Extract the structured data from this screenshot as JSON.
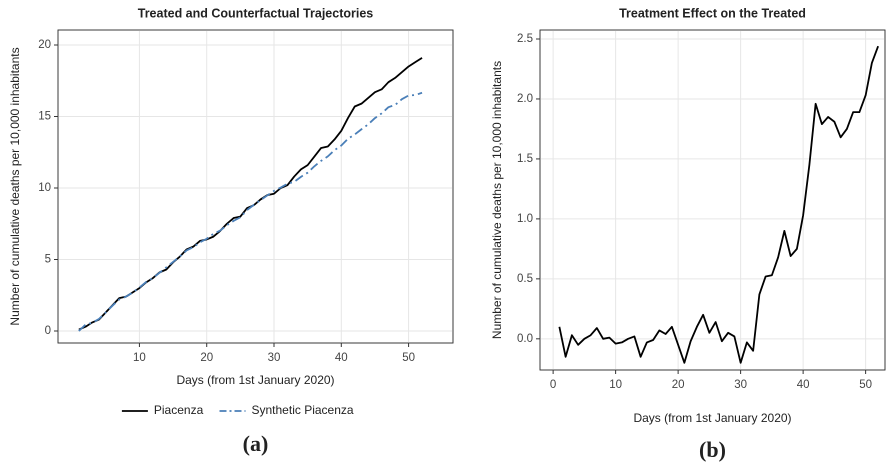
{
  "chart_data": [
    {
      "type": "line",
      "title": "Treated and Counterfactual Trajectories",
      "x_label": "Days (from 1st January 2020)",
      "y_label": "Number of cumulative deaths per 10,000 inhabitants",
      "caption": "(a)",
      "x": [
        1,
        2,
        3,
        4,
        5,
        6,
        7,
        8,
        9,
        10,
        11,
        12,
        13,
        14,
        15,
        16,
        17,
        18,
        19,
        20,
        21,
        22,
        23,
        24,
        25,
        26,
        27,
        28,
        29,
        30,
        31,
        32,
        33,
        34,
        35,
        36,
        37,
        38,
        39,
        40,
        41,
        42,
        43,
        44,
        45,
        46,
        47,
        48,
        49,
        50,
        51,
        52
      ],
      "series": [
        {
          "name": "Piacenza",
          "color": "#000000",
          "linestyle": "solid",
          "values": [
            0.1,
            0.3,
            0.6,
            0.8,
            1.3,
            1.8,
            2.3,
            2.4,
            2.7,
            3.0,
            3.4,
            3.7,
            4.1,
            4.3,
            4.8,
            5.2,
            5.7,
            5.9,
            6.3,
            6.4,
            6.6,
            7.0,
            7.5,
            7.9,
            8.0,
            8.6,
            8.8,
            9.2,
            9.5,
            9.6,
            10.0,
            10.2,
            10.8,
            11.3,
            11.6,
            12.2,
            12.8,
            12.9,
            13.4,
            14.0,
            14.9,
            15.7,
            15.9,
            16.3,
            16.7,
            16.9,
            17.4,
            17.7,
            18.1,
            18.5,
            18.8,
            19.1
          ]
        },
        {
          "name": "Synthetic Piacenza",
          "color": "#4a7fb8",
          "linestyle": "dashdot",
          "values": [
            0.0,
            0.45,
            0.57,
            0.85,
            1.3,
            1.77,
            2.21,
            2.4,
            2.69,
            3.04,
            3.43,
            3.7,
            4.08,
            4.45,
            4.83,
            5.21,
            5.63,
            5.86,
            6.2,
            6.45,
            6.8,
            7.02,
            7.4,
            7.7,
            7.95,
            8.46,
            8.82,
            9.15,
            9.48,
            9.8,
            10.03,
            10.3,
            10.43,
            10.78,
            11.07,
            11.52,
            11.9,
            12.21,
            12.65,
            12.97,
            13.45,
            13.74,
            14.11,
            14.45,
            14.89,
            15.22,
            15.65,
            15.81,
            16.21,
            16.47,
            16.5,
            16.66
          ]
        }
      ],
      "xlim": [
        -2.1,
        56.6
      ],
      "xticks": [
        10,
        20,
        30,
        40,
        50
      ],
      "ylim": [
        -0.84,
        21.05
      ],
      "yticks": [
        0,
        5,
        10,
        15,
        20
      ],
      "grid": true,
      "legend": "bottom"
    },
    {
      "type": "line",
      "title": "Treatment Effect on the Treated",
      "x_label": "Days (from 1st January 2020)",
      "y_label": "Number of cumulative deaths per 10,000 inhabitants",
      "caption": "(b)",
      "x": [
        1,
        2,
        3,
        4,
        5,
        6,
        7,
        8,
        9,
        10,
        11,
        12,
        13,
        14,
        15,
        16,
        17,
        18,
        19,
        20,
        21,
        22,
        23,
        24,
        25,
        26,
        27,
        28,
        29,
        30,
        31,
        32,
        33,
        34,
        35,
        36,
        37,
        38,
        39,
        40,
        41,
        42,
        43,
        44,
        45,
        46,
        47,
        48,
        49,
        50,
        51,
        52
      ],
      "series": [
        {
          "color": "#000000",
          "linestyle": "solid",
          "values": [
            0.1,
            -0.15,
            0.03,
            -0.05,
            0.0,
            0.03,
            0.09,
            0.0,
            0.01,
            -0.04,
            -0.03,
            0.0,
            0.02,
            -0.15,
            -0.03,
            -0.01,
            0.07,
            0.04,
            0.1,
            -0.05,
            -0.2,
            -0.02,
            0.1,
            0.2,
            0.05,
            0.14,
            -0.02,
            0.05,
            0.02,
            -0.2,
            -0.03,
            -0.1,
            0.37,
            0.52,
            0.53,
            0.68,
            0.9,
            0.69,
            0.75,
            1.03,
            1.45,
            1.96,
            1.79,
            1.85,
            1.81,
            1.68,
            1.75,
            1.89,
            1.89,
            2.03,
            2.3,
            2.44
          ]
        }
      ],
      "xlim": [
        -2.1,
        53.1
      ],
      "xticks": [
        0,
        10,
        20,
        30,
        40,
        50
      ],
      "ylim": [
        -0.26,
        2.575
      ],
      "yticks": [
        {
          "value": 0,
          "label": "0.0"
        },
        {
          "value": 0.5,
          "label": "0.5"
        },
        {
          "value": 1,
          "label": "1.0"
        },
        {
          "value": 1.5,
          "label": "1.5"
        },
        {
          "value": 2,
          "label": "2.0"
        },
        {
          "value": 2.5,
          "label": "2.5"
        }
      ],
      "grid": true
    }
  ]
}
